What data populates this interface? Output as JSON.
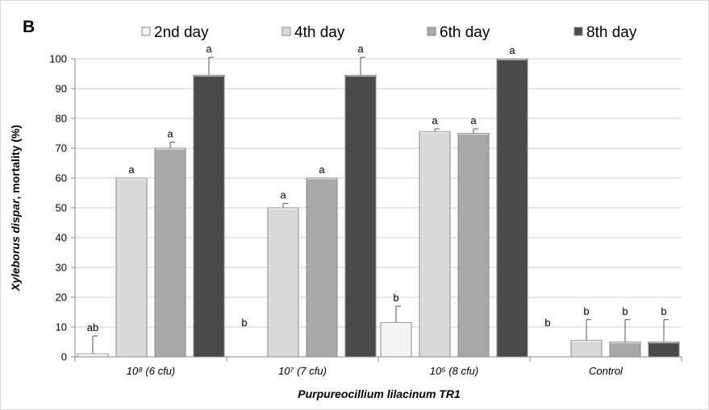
{
  "chart_data": {
    "type": "bar",
    "panel_label": "B",
    "ylabel_species": "Xyleborus dispar",
    "ylabel_rest": ", mortality  (%)",
    "xlabel": "Purpureocillium lilacinum TR1",
    "ylim": [
      0,
      100
    ],
    "yticks": [
      0,
      10,
      20,
      30,
      40,
      50,
      60,
      70,
      80,
      90,
      100
    ],
    "grid": true,
    "legend_position": "top",
    "categories": [
      "10⁸ (6 cfu)",
      "10⁷ (7 cfu)",
      "10⁵ (8 cfu)",
      "Control"
    ],
    "series": [
      {
        "name": "2nd day",
        "color": "#f4f4f4",
        "values": [
          1,
          0,
          11.5,
          0
        ],
        "error": [
          6,
          0,
          5.5,
          0
        ],
        "letters": [
          "ab",
          "b",
          "b",
          "b"
        ]
      },
      {
        "name": "4th day",
        "color": "#dadada",
        "values": [
          60,
          50,
          75.5,
          5.5
        ],
        "error": [
          0,
          1.5,
          1,
          7
        ],
        "letters": [
          "a",
          "a",
          "a",
          "b"
        ]
      },
      {
        "name": "6th day",
        "color": "#a8a8a8",
        "values": [
          70,
          60,
          75,
          5
        ],
        "error": [
          2,
          0,
          1.5,
          7.5
        ],
        "letters": [
          "a",
          "a",
          "a",
          "b"
        ]
      },
      {
        "name": "8th day",
        "color": "#4a4a4a",
        "values": [
          94.5,
          94.5,
          100,
          5
        ],
        "error": [
          6,
          6,
          0,
          7.5
        ],
        "letters": [
          "a",
          "a",
          "a",
          "b"
        ]
      }
    ]
  }
}
